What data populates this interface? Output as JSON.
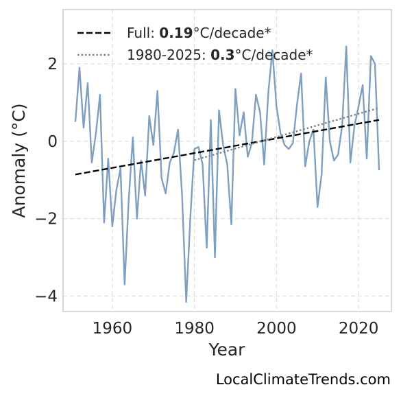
{
  "chart_data": {
    "type": "line",
    "title": "",
    "xlabel": "Year",
    "ylabel": "Anomaly (°C)",
    "xlim": [
      1948,
      2028
    ],
    "ylim": [
      -4.4,
      3.4
    ],
    "xticks": [
      1960,
      1980,
      2000,
      2020
    ],
    "yticks": [
      -4,
      -2,
      0,
      2
    ],
    "ytick_labels": [
      "−4",
      "−2",
      "0",
      "2"
    ],
    "grid": true,
    "legend_position": "top-left",
    "series": [
      {
        "style": "solid",
        "color": "#7f9fc0",
        "x": [
          1951,
          1952,
          1953,
          1954,
          1955,
          1956,
          1957,
          1958,
          1959,
          1960,
          1961,
          1962,
          1963,
          1964,
          1965,
          1966,
          1967,
          1968,
          1969,
          1970,
          1971,
          1972,
          1973,
          1974,
          1975,
          1976,
          1977,
          1978,
          1979,
          1980,
          1981,
          1982,
          1983,
          1984,
          1985,
          1986,
          1987,
          1988,
          1989,
          1990,
          1991,
          1992,
          1993,
          1994,
          1995,
          1996,
          1997,
          1998,
          1999,
          2000,
          2001,
          2002,
          2003,
          2004,
          2005,
          2006,
          2007,
          2008,
          2009,
          2010,
          2011,
          2012,
          2013,
          2014,
          2015,
          2016,
          2017,
          2018,
          2019,
          2020,
          2021,
          2022,
          2023,
          2024,
          2025
        ],
        "y": [
          0.5,
          1.9,
          0.35,
          1.5,
          -0.55,
          0.2,
          1.2,
          -2.1,
          -0.45,
          -2.2,
          -1.25,
          -0.7,
          -3.7,
          -1.5,
          0.1,
          -2.0,
          -0.5,
          -1.4,
          0.65,
          -0.1,
          1.3,
          -0.95,
          -1.35,
          -0.55,
          -0.3,
          0.3,
          -1.4,
          -4.15,
          -2.0,
          -0.2,
          -0.15,
          -0.6,
          -2.75,
          0.55,
          -3.0,
          0.8,
          -0.1,
          -0.6,
          -2.15,
          1.35,
          0.15,
          0.75,
          -0.4,
          -0.05,
          1.2,
          0.75,
          -0.6,
          1.25,
          2.35,
          0.9,
          0.2,
          -0.1,
          -0.2,
          -0.05,
          0.95,
          1.75,
          -0.65,
          0.0,
          0.3,
          -1.7,
          -0.85,
          1.65,
          0.0,
          -0.5,
          -0.35,
          0.4,
          2.45,
          -0.55,
          0.4,
          0.9,
          1.45,
          -0.45,
          2.2,
          2.0,
          -0.75
        ]
      },
      {
        "style": "dashed",
        "color": "#000000",
        "x": [
          1951,
          2025
        ],
        "y": [
          -0.86,
          0.55
        ]
      },
      {
        "style": "dotted",
        "color": "#808080",
        "x": [
          1980,
          2025
        ],
        "y": [
          -0.49,
          0.86
        ]
      }
    ],
    "legend": [
      {
        "prefix": "Full: ",
        "value": "0.19",
        "suffix": "°C/decade*",
        "style": "dashed",
        "color": "#000000"
      },
      {
        "prefix": "1980-2025: ",
        "value": "0.3",
        "suffix": "°C/decade*",
        "style": "dotted",
        "color": "#808080"
      }
    ]
  },
  "credit": "LocalClimateTrends.com"
}
